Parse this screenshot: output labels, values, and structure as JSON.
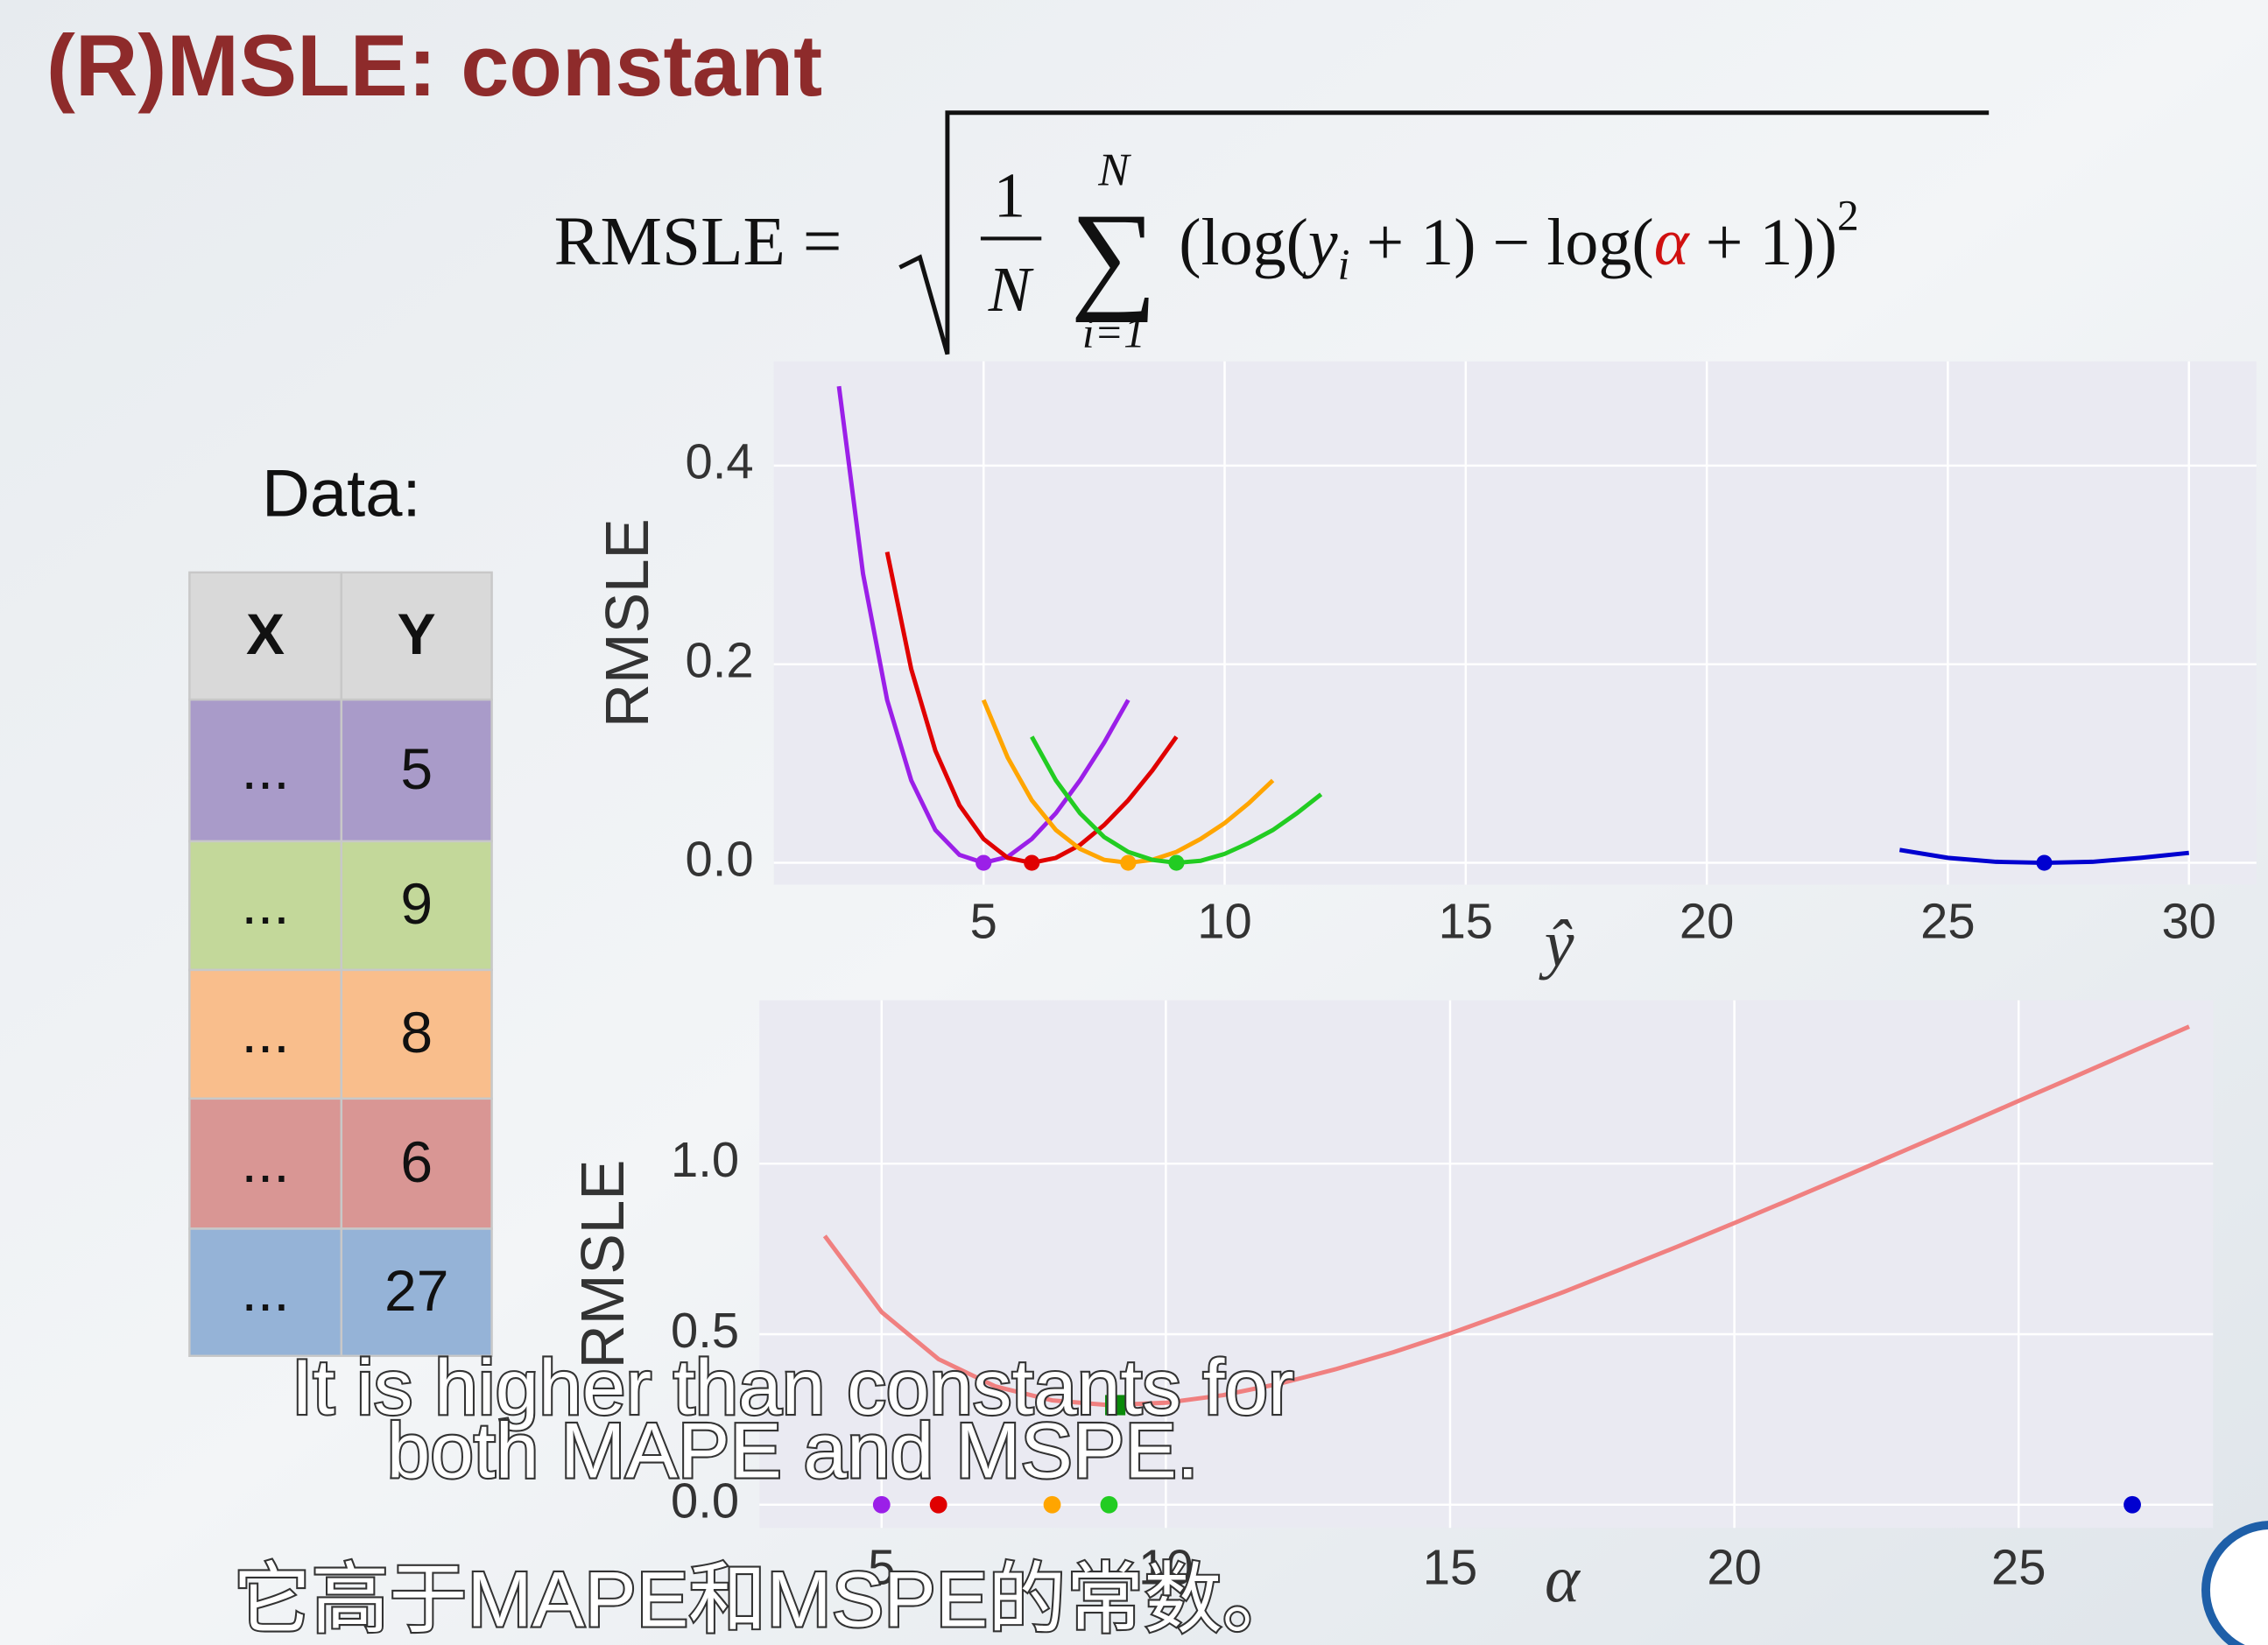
{
  "title": "(R)MSLE: constant",
  "formula": {
    "lhs": "RMSLE =",
    "frac_num": "1",
    "frac_den": "N",
    "sum": "∑",
    "sum_top": "N",
    "sum_bottom": "i=1",
    "body_1": "(log(",
    "y": "y",
    "sub": "i",
    "body_2": " + 1) − log(",
    "alpha": "α",
    "body_3": " + 1))",
    "power": "2"
  },
  "table": {
    "caption": "Data:",
    "header": [
      "X",
      "Y"
    ],
    "rows": [
      [
        "...",
        "5"
      ],
      [
        "...",
        "9"
      ],
      [
        "...",
        "8"
      ],
      [
        "...",
        "6"
      ],
      [
        "...",
        "27"
      ]
    ],
    "row_colors": [
      "#a99bc9",
      "#c3d89a",
      "#f9be8c",
      "#d99694",
      "#95b3d7"
    ],
    "header_color": "#d9d9d9"
  },
  "subtitles": [
    "It is higher than constants for",
    "both MAPE and MSPE.",
    "它高于MAPE和MSPE的常数。"
  ],
  "chart_data": [
    {
      "type": "line",
      "x_label": "ŷ",
      "y_label": "RMSLE",
      "xlim": [
        0.65,
        31.4
      ],
      "ylim": [
        -0.022,
        0.505
      ],
      "xticks": [
        5,
        10,
        15,
        20,
        25,
        30
      ],
      "yticks": [
        {
          "value": 0,
          "label": "0.0"
        },
        {
          "value": 0.2,
          "label": "0.2"
        },
        {
          "value": 0.4,
          "label": "0.4"
        }
      ],
      "grid": true,
      "series": [
        {
          "color": "#9b1fe8",
          "marker": [
            5,
            0
          ],
          "x": [
            2,
            2.5,
            3,
            3.5,
            4,
            4.5,
            5,
            5.5,
            6,
            6.5,
            7,
            7.5,
            8
          ],
          "values": [
            0.48,
            0.291,
            0.164,
            0.083,
            0.033,
            0.008,
            0,
            0.006,
            0.024,
            0.05,
            0.083,
            0.121,
            0.164
          ]
        },
        {
          "color": "#e00000",
          "marker": [
            6,
            0
          ],
          "x": [
            3,
            3.5,
            4,
            4.5,
            5,
            5.5,
            6,
            6.5,
            7,
            7.5,
            8,
            8.5,
            9
          ],
          "values": [
            0.313,
            0.195,
            0.113,
            0.058,
            0.024,
            0.005,
            0,
            0.005,
            0.018,
            0.038,
            0.063,
            0.093,
            0.127
          ]
        },
        {
          "color": "#ffa500",
          "marker": [
            8,
            0
          ],
          "x": [
            5,
            5.5,
            6,
            6.5,
            7,
            7.5,
            8,
            8.5,
            9,
            9.5,
            10,
            10.5,
            11
          ],
          "values": [
            0.164,
            0.106,
            0.063,
            0.033,
            0.014,
            0.003,
            0,
            0.003,
            0.011,
            0.024,
            0.04,
            0.06,
            0.083
          ]
        },
        {
          "color": "#22cc22",
          "marker": [
            9,
            0
          ],
          "x": [
            6,
            6.5,
            7,
            7.5,
            8,
            8.5,
            9,
            9.5,
            10,
            10.5,
            11,
            11.5,
            12
          ],
          "values": [
            0.127,
            0.083,
            0.05,
            0.026,
            0.011,
            0.003,
            0,
            0.002,
            0.009,
            0.02,
            0.033,
            0.05,
            0.069
          ]
        },
        {
          "color": "#0000d0",
          "marker": [
            27,
            0
          ],
          "x": [
            24,
            25,
            26,
            27,
            28,
            29,
            30
          ],
          "values": [
            0.013,
            0.005,
            0.001,
            0,
            0.001,
            0.005,
            0.01
          ]
        }
      ]
    },
    {
      "type": "line",
      "x_label": "α",
      "y_label": "RMSLE",
      "xlim": [
        2.85,
        28.42
      ],
      "ylim": [
        -0.068,
        1.479
      ],
      "xticks": [
        5,
        10,
        15,
        20,
        25
      ],
      "yticks": [
        {
          "value": 0,
          "label": "0.0"
        },
        {
          "value": 0.5,
          "label": "0.5"
        },
        {
          "value": 1,
          "label": "1.0"
        }
      ],
      "grid": true,
      "series": [
        {
          "color": "#f08080",
          "x": [
            4,
            5,
            6,
            7,
            8,
            9,
            10,
            11,
            12,
            13,
            14,
            15,
            16,
            17,
            18,
            19,
            20,
            21,
            22,
            23,
            24,
            25,
            26,
            27,
            28
          ],
          "values": [
            0.788,
            0.565,
            0.427,
            0.347,
            0.306,
            0.292,
            0.299,
            0.321,
            0.355,
            0.398,
            0.447,
            0.502,
            0.562,
            0.624,
            0.69,
            0.757,
            0.826,
            0.896,
            0.967,
            1.039,
            1.111,
            1.184,
            1.256,
            1.329,
            1.402
          ]
        }
      ],
      "points": {
        "x": [
          5,
          6,
          8,
          9,
          27
        ],
        "y": [
          0,
          0,
          0,
          0,
          0
        ],
        "colors": [
          "#9b1fe8",
          "#e00000",
          "#ffa500",
          "#22cc22",
          "#0000d0"
        ]
      },
      "optimum": {
        "x": 9.11,
        "y": 0.292,
        "color": "#0a8a0a"
      }
    }
  ]
}
